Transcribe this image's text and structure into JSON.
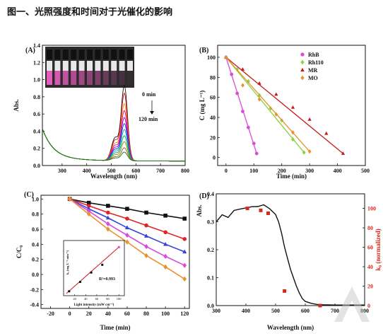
{
  "header": {
    "title": "图一、光照强度和时间对于光催化的影响"
  },
  "colors": {
    "rhb": "#d94cd6",
    "rh110": "#8dcf3d",
    "mr": "#c61b1b",
    "mo": "#e8922e",
    "k0_red": "#d7281c",
    "black": "#111111",
    "vial_pink": "#f05fc4"
  },
  "chart_data": [
    {
      "panel": "(A)",
      "type": "line",
      "xlabel": "Wavelength (nm)",
      "ylabel": "Abs.",
      "xlim": [
        220,
        800
      ],
      "ylim": [
        0,
        1.4
      ],
      "xticks": [
        300,
        400,
        500,
        600,
        700,
        800
      ],
      "yticks": [
        0.0,
        0.2,
        0.4,
        0.6,
        0.8,
        1.0,
        1.2,
        1.4
      ],
      "annotations": {
        "start": "0 min",
        "end": "120 min"
      },
      "peak_wavelength": 553,
      "series": [
        {
          "time_order": 0,
          "peak": 0.87,
          "color": "#111111"
        },
        {
          "time_order": 1,
          "peak": 0.78,
          "color": "#cc1111"
        },
        {
          "time_order": 2,
          "peak": 0.66,
          "color": "#ff8800"
        },
        {
          "time_order": 3,
          "peak": 0.58,
          "color": "#dd00aa"
        },
        {
          "time_order": 4,
          "peak": 0.5,
          "color": "#9900cc"
        },
        {
          "time_order": 5,
          "peak": 0.43,
          "color": "#0044dd"
        },
        {
          "time_order": 6,
          "peak": 0.36,
          "color": "#00aacc"
        },
        {
          "time_order": 7,
          "peak": 0.29,
          "color": "#00aa44"
        },
        {
          "time_order": 8,
          "peak": 0.22,
          "color": "#888800"
        },
        {
          "time_order": 9,
          "peak": 0.15,
          "color": "#a0522d"
        },
        {
          "time_order": 10,
          "peak": 0.1,
          "color": "#0a7a0a"
        }
      ]
    },
    {
      "panel": "(B)",
      "type": "scatter",
      "xlabel": "Time (min)",
      "ylabel": "C (mg L⁻¹)",
      "xlim": [
        -30,
        500
      ],
      "ylim": [
        -8,
        112
      ],
      "xticks": [
        0,
        100,
        200,
        300,
        400,
        500
      ],
      "yticks": [
        0,
        20,
        40,
        60,
        80,
        100
      ],
      "series": [
        {
          "name": "RhB",
          "marker": "circle",
          "color": "#d94cd6",
          "x": [
            0,
            20,
            40,
            60,
            80,
            100,
            110
          ],
          "y": [
            100,
            83,
            64,
            46,
            30,
            14,
            4
          ]
        },
        {
          "name": "Rh110",
          "marker": "diamond",
          "color": "#8dcf3d",
          "x": [
            0,
            40,
            80,
            120,
            160,
            200,
            240,
            280
          ],
          "y": [
            100,
            88,
            76,
            62,
            49,
            37,
            18,
            5
          ]
        },
        {
          "name": "MR",
          "marker": "triangle",
          "color": "#c61b1b",
          "x": [
            0,
            60,
            120,
            180,
            240,
            300,
            360,
            420
          ],
          "y": [
            100,
            88,
            74,
            63,
            50,
            38,
            24,
            4
          ]
        },
        {
          "name": "MO",
          "marker": "diamond",
          "color": "#e8922e",
          "x": [
            0,
            60,
            120,
            180,
            240,
            300
          ],
          "y": [
            100,
            72,
            58,
            43,
            25,
            6
          ]
        }
      ]
    },
    {
      "panel": "(C)",
      "type": "line",
      "xlabel": "Time (min)",
      "ylabel": "C/C₀",
      "xlim": [
        -30,
        125
      ],
      "ylim": [
        -0.45,
        1.05
      ],
      "xticks": [
        -20,
        0,
        20,
        40,
        60,
        80,
        100,
        120
      ],
      "yticks": [
        -0.4,
        -0.2,
        0.0,
        0.2,
        0.4,
        0.6,
        0.8,
        1.0
      ],
      "x": [
        0,
        20,
        40,
        60,
        80,
        100,
        120
      ],
      "series": [
        {
          "marker": "square",
          "color": "#111111",
          "values": [
            1.0,
            0.95,
            0.91,
            0.87,
            0.82,
            0.78,
            0.74
          ]
        },
        {
          "marker": "circle",
          "color": "#e02424",
          "values": [
            1.0,
            0.91,
            0.82,
            0.74,
            0.65,
            0.56,
            0.47
          ]
        },
        {
          "marker": "triangle",
          "color": "#3344dd",
          "values": [
            1.0,
            0.87,
            0.75,
            0.62,
            0.51,
            0.4,
            0.3
          ]
        },
        {
          "marker": "diamond",
          "color": "#d94cd6",
          "values": [
            1.0,
            0.84,
            0.67,
            0.52,
            0.37,
            0.24,
            0.12
          ]
        },
        {
          "marker": "diamond",
          "color": "#e8922e",
          "values": [
            1.0,
            0.8,
            0.6,
            0.43,
            0.25,
            0.1,
            -0.06
          ]
        }
      ],
      "inset": {
        "type": "scatter",
        "xlabel": "Light intensity (mW cm⁻²)",
        "ylabel": "kₐ (mg L⁻¹ min⁻¹)",
        "annotation": "R²=0.993",
        "xticks": [
          20,
          40,
          60,
          80,
          100
        ],
        "xlim": [
          0,
          110
        ],
        "ylim": [
          0.3,
          1.3
        ],
        "x": [
          10,
          30,
          50,
          70,
          100
        ],
        "y": [
          0.38,
          0.55,
          0.72,
          0.86,
          1.18
        ],
        "colors": [
          "#111111",
          "#111111",
          "#111111",
          "#111111",
          "#d94cd6"
        ]
      }
    },
    {
      "panel": "(D)",
      "type": "line",
      "xlabel": "Wavelength (nm)",
      "ylabel": "Abs.",
      "ylabel_right": "k₀ (normalized)",
      "xlim": [
        300,
        800
      ],
      "ylim": [
        0,
        0.4
      ],
      "ylim_right": [
        0,
        115
      ],
      "xticks": [
        300,
        400,
        500,
        600,
        700,
        800
      ],
      "yticks": [
        0.0,
        0.1,
        0.2,
        0.3,
        0.4
      ],
      "yticks_right": [
        0,
        20,
        40,
        60,
        80,
        100
      ],
      "abs_curve": {
        "x": [
          300,
          320,
          340,
          360,
          380,
          400,
          420,
          440,
          460,
          480,
          500,
          510,
          520,
          530,
          540,
          550,
          560,
          570,
          580,
          590,
          600,
          620,
          640,
          660,
          700,
          750,
          800
        ],
        "y": [
          0.3,
          0.32,
          0.31,
          0.34,
          0.35,
          0.355,
          0.355,
          0.35,
          0.355,
          0.345,
          0.33,
          0.3,
          0.26,
          0.21,
          0.17,
          0.13,
          0.1,
          0.07,
          0.045,
          0.025,
          0.015,
          0.008,
          0.004,
          0.003,
          0.002,
          0.002,
          0.002
        ]
      },
      "k0_points": {
        "x": [
          405,
          450,
          475,
          530,
          650
        ],
        "y": [
          100,
          98,
          95,
          15,
          0
        ]
      }
    }
  ]
}
